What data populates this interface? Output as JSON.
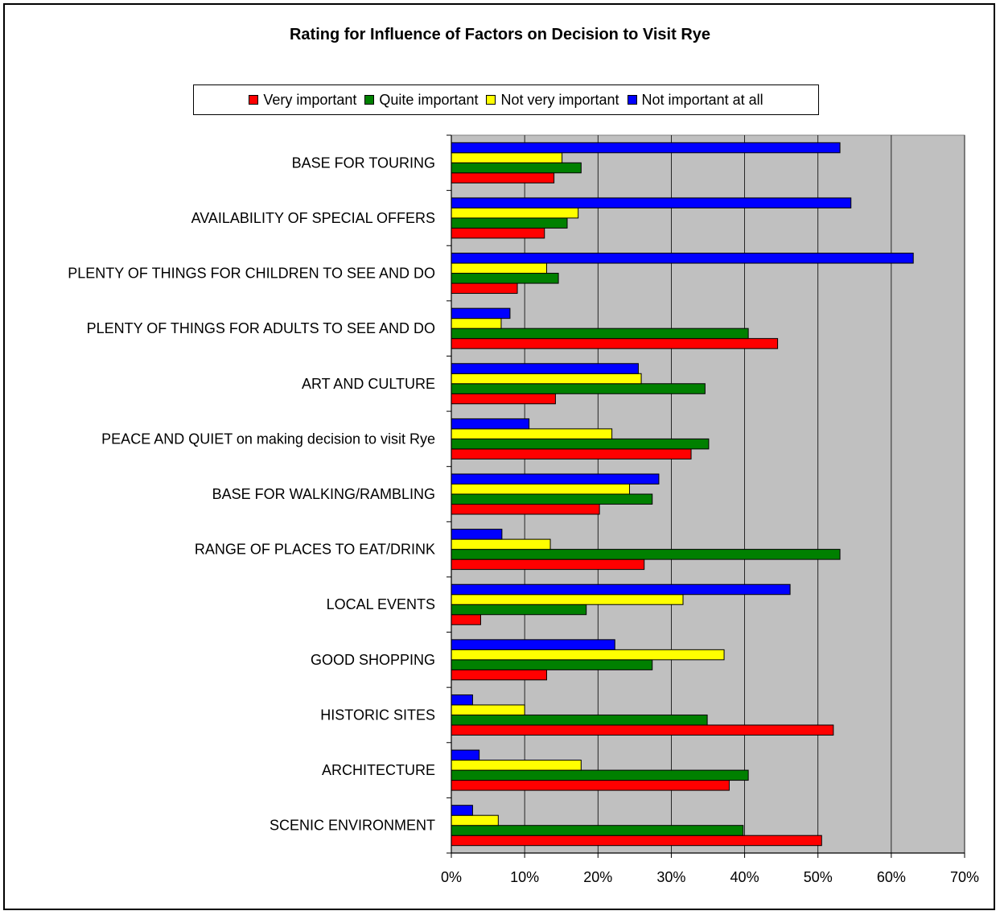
{
  "chart_data": {
    "type": "bar",
    "orientation": "horizontal",
    "title": "Rating for Influence of Factors on Decision to Visit Rye",
    "categories": [
      "BASE FOR TOURING",
      "AVAILABILITY OF SPECIAL OFFERS",
      "PLENTY OF THINGS FOR CHILDREN TO SEE AND DO",
      "PLENTY OF THINGS FOR ADULTS TO SEE AND DO",
      "ART AND CULTURE",
      "PEACE AND QUIET on making decision to visit Rye",
      "BASE FOR WALKING/RAMBLING",
      "RANGE OF PLACES TO EAT/DRINK",
      "LOCAL EVENTS",
      "GOOD SHOPPING",
      "HISTORIC SITES",
      "ARCHITECTURE",
      "SCENIC ENVIRONMENT"
    ],
    "series": [
      {
        "name": "Very important",
        "color": "#ff0000",
        "values": [
          14,
          12.7,
          9,
          44.5,
          14.2,
          32.7,
          20.2,
          26.3,
          4,
          13,
          52.1,
          37.9,
          50.5
        ]
      },
      {
        "name": "Quite important",
        "color": "#008000",
        "values": [
          17.7,
          15.8,
          14.6,
          40.5,
          34.6,
          35.1,
          27.4,
          53,
          18.4,
          27.4,
          34.9,
          40.5,
          39.8
        ]
      },
      {
        "name": "Not very important",
        "color": "#ffff00",
        "values": [
          15.1,
          17.3,
          13,
          6.8,
          25.9,
          21.9,
          24.3,
          13.5,
          31.6,
          37.2,
          10,
          17.7,
          6.4
        ]
      },
      {
        "name": "Not important at all",
        "color": "#0000ff",
        "values": [
          53,
          54.5,
          63,
          8,
          25.5,
          10.6,
          28.3,
          6.9,
          46.2,
          22.3,
          2.9,
          3.8,
          2.9
        ]
      }
    ],
    "xlim": [
      0,
      70
    ],
    "x_ticks": [
      "0%",
      "10%",
      "20%",
      "30%",
      "40%",
      "50%",
      "60%",
      "70%"
    ],
    "grid": true,
    "legend_position": "top",
    "plot_background": "#c0c0c0"
  }
}
